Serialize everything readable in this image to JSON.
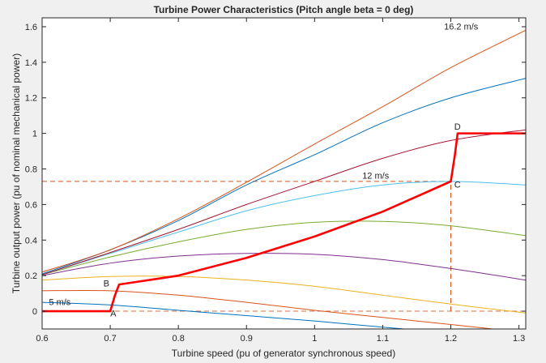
{
  "chart_data": {
    "type": "line",
    "title": "Turbine Power Characteristics (Pitch angle beta = 0 deg)",
    "xlabel": "Turbine speed (pu of generator synchronous speed)",
    "ylabel": "Turbine output power (pu of nominal mechanical power)",
    "xlim": [
      0.6,
      1.31
    ],
    "ylim": [
      -0.1,
      1.65
    ],
    "xticks": [
      0.6,
      0.7,
      0.8,
      0.9,
      1,
      1.1,
      1.2,
      1.3
    ],
    "xtick_labels": [
      "0.6",
      "0.7",
      "0.8",
      "0.9",
      "1",
      "1.1",
      "1.2",
      "1.3"
    ],
    "yticks": [
      0,
      0.2,
      0.4,
      0.6,
      0.8,
      1,
      1.2,
      1.4,
      1.6
    ],
    "ytick_labels": [
      "0",
      "0.2",
      "0.4",
      "0.6",
      "0.8",
      "1",
      "1.2",
      "1.4",
      "1.6"
    ],
    "grid": false,
    "series": [
      {
        "color": "#0072BD",
        "x": [
          0.6,
          0.7,
          0.8,
          0.9,
          1.0,
          1.1,
          1.2,
          1.31
        ],
        "values": [
          0.05,
          0.035,
          0.005,
          -0.025,
          -0.055,
          -0.09,
          -0.12,
          -0.15
        ]
      },
      {
        "color": "#D95319",
        "x": [
          0.6,
          0.7,
          0.8,
          0.9,
          1.0,
          1.1,
          1.2,
          1.31
        ],
        "values": [
          0.115,
          0.115,
          0.09,
          0.05,
          0.005,
          -0.035,
          -0.075,
          -0.12
        ]
      },
      {
        "color": "#EDB120",
        "x": [
          0.6,
          0.7,
          0.8,
          0.9,
          1.0,
          1.1,
          1.2,
          1.31
        ],
        "values": [
          0.175,
          0.195,
          0.195,
          0.175,
          0.14,
          0.09,
          0.04,
          -0.01
        ]
      },
      {
        "color": "#7E2F8E",
        "x": [
          0.6,
          0.7,
          0.8,
          0.9,
          1.0,
          1.1,
          1.2,
          1.31
        ],
        "values": [
          0.2,
          0.27,
          0.31,
          0.325,
          0.32,
          0.29,
          0.24,
          0.175
        ]
      },
      {
        "color": "#77AC30",
        "x": [
          0.6,
          0.7,
          0.8,
          0.9,
          1.0,
          1.1,
          1.2,
          1.31
        ],
        "values": [
          0.205,
          0.305,
          0.39,
          0.46,
          0.5,
          0.505,
          0.48,
          0.425
        ]
      },
      {
        "color": "#4DBEEE",
        "x": [
          0.6,
          0.7,
          0.8,
          0.9,
          1.0,
          1.1,
          1.2,
          1.31
        ],
        "values": [
          0.205,
          0.325,
          0.445,
          0.565,
          0.65,
          0.71,
          0.73,
          0.71
        ]
      },
      {
        "color": "#A2142F",
        "x": [
          0.6,
          0.7,
          0.8,
          0.9,
          1.0,
          1.1,
          1.2,
          1.31
        ],
        "values": [
          0.205,
          0.33,
          0.46,
          0.6,
          0.73,
          0.86,
          0.96,
          1.02
        ]
      },
      {
        "color": "#0072BD",
        "x": [
          0.6,
          0.7,
          0.8,
          0.9,
          1.0,
          1.1,
          1.2,
          1.31
        ],
        "values": [
          0.21,
          0.345,
          0.51,
          0.71,
          0.88,
          1.06,
          1.2,
          1.31
        ]
      },
      {
        "color": "#D95319",
        "x": [
          0.6,
          0.7,
          0.8,
          0.9,
          1.0,
          1.1,
          1.2,
          1.31
        ],
        "values": [
          0.22,
          0.345,
          0.52,
          0.725,
          0.94,
          1.15,
          1.37,
          1.58
        ]
      },
      {
        "color": "#FF0000",
        "x": [
          0.6,
          0.7,
          0.707,
          0.713,
          0.8,
          0.9,
          1.0,
          1.1,
          1.2,
          1.206,
          1.21,
          1.31
        ],
        "values": [
          0,
          0,
          0.09,
          0.15,
          0.2,
          0.3,
          0.42,
          0.56,
          0.73,
          0.88,
          1.0,
          1.0
        ]
      }
    ],
    "reference_lines": {
      "color": "#D95319",
      "horizontal": [
        0.73,
        0
      ],
      "vertical": [
        1.2
      ]
    },
    "annotations": [
      {
        "text": "16.2 m/s",
        "x": 1.19,
        "y": 1.585
      },
      {
        "text": "12 m/s",
        "x": 1.07,
        "y": 0.745
      },
      {
        "text": "5 m/s",
        "x": 0.61,
        "y": 0.035
      },
      {
        "text": "A",
        "x": 0.7,
        "y": -0.03
      },
      {
        "text": "B",
        "x": 0.69,
        "y": 0.14
      },
      {
        "text": "C",
        "x": 1.205,
        "y": 0.695
      },
      {
        "text": "D",
        "x": 1.205,
        "y": 1.02
      }
    ]
  }
}
